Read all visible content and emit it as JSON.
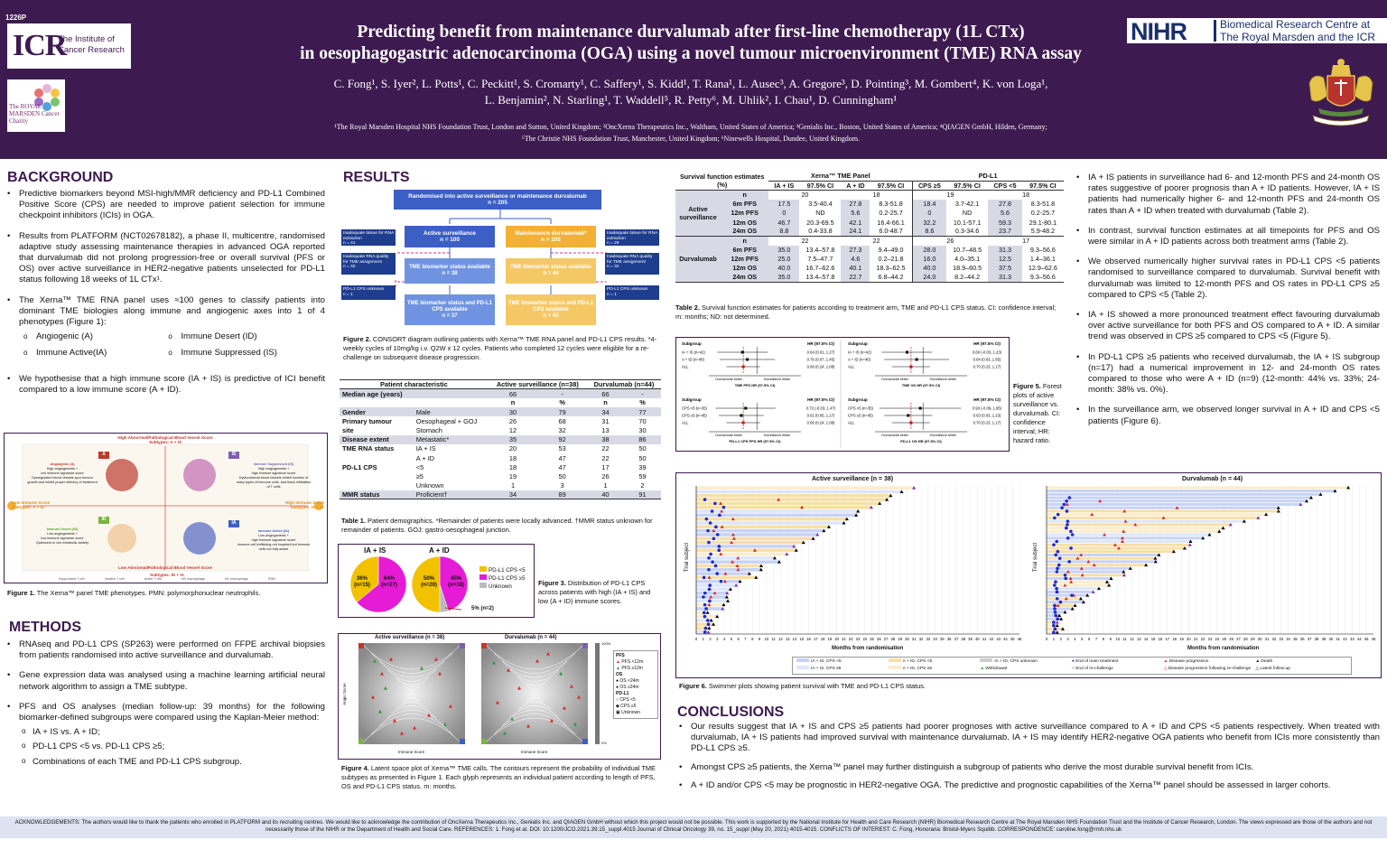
{
  "header": {
    "poster_id": "1226P",
    "icr_letters": "ICR",
    "icr_name": "The Institute of Cancer Research",
    "rm_text": "The ROYAL MARSDEN Cancer Charity",
    "title_line1": "Predicting benefit from maintenance durvalumab after first-line chemotherapy (1L CTx)",
    "title_line2": "in oesophagogastric adenocarcinoma (OGA) using a novel tumour microenvironment (TME) RNA assay",
    "authors_line1": "C. Fong¹, S. Iyer², L. Potts¹, C. Peckitt¹, S. Cromarty¹, C. Saffery¹, S. Kidd¹, T. Rana¹, L. Ausec³, A. Gregore³, D. Pointing³, M. Gombert⁴, K. von Loga¹,",
    "authors_line2": "L. Benjamin², N. Starling¹, T. Waddell⁵, R. Petty⁶, M. Uhlik², I. Chau¹, D. Cunningham¹",
    "affils_line1": "¹The Royal Marsden Hospital NHS Foundation Trust, London and Sutton, United Kingdom; ²OncXerna Therapeutics Inc., Waltham, United States of America; ³Genialis Inc., Boston, United States of America; ⁴QIAGEN GmbH, Hilden, Germany;",
    "affils_line2": "⁵The Christie NHS Foundation Trust, Manchester, United Kingdom; ⁶Ninewells Hospital, Dundee, United Kingdom.",
    "nihr_word": "NIHR",
    "nihr_text_line1": "Biomedical Research Centre at",
    "nihr_text_line2": "The Royal Marsden and the ICR",
    "brand_color": "#3d1a4f"
  },
  "background": {
    "heading": "BACKGROUND",
    "p1": "Predictive biomarkers beyond MSI-high/MMR deficiency and PD-L1 Combined Positive Score (CPS) are needed to improve patient selection for immune checkpoint inhibitors (ICIs) in OGA.",
    "p2": "Results from PLATFORM (NCT02678182), a phase II, multicentre, randomised adaptive study assessing maintenance therapies in advanced OGA reported that durvalumab did not prolong progression-free or overall survival (PFS or OS) over active surveillance in HER2-negative patients unselected for PD-L1 status following 18 weeks of 1L CTx¹.",
    "p3": "The Xerna™ TME RNA panel uses ≈100 genes to classify patients into dominant TME biologies along immune and angiogenic axes into 1 of 4 phenotypes (Figure 1):",
    "phenotypes": [
      "Angiogenic (A)",
      "Immune Desert (ID)",
      "Immune Active(IA)",
      "Immune Suppressed (IS)"
    ],
    "p4": "We hypothesise that a high immune score (IA + IS) is predictive of ICI benefit compared to a low immune score (A + ID)."
  },
  "fig1": {
    "top_label": "High Abnormal/Pathological Blood Vessel Score",
    "top_sub": "Subtypes: A + IS",
    "bottom_label": "Low Abnormal/Pathological Blood Vessel Score",
    "bottom_sub": "Subtypes: ID + IA",
    "left_label": "Low Immune Score",
    "left_sub": "Subtypes: A + ID",
    "right_label": "High Immune Score",
    "right_sub": "Subtypes: IS + IA",
    "q_a": "A",
    "q_is": "IS",
    "q_id": "ID",
    "q_ia": "IA",
    "a_title": "Angiogenic (A)",
    "a_l1": "High angiogenesis +",
    "a_l2": "low immune signature score",
    "a_l3": "Dysregulated blood vessels spur tumour growth and inhibit proper delivery of treatment",
    "is_title": "Immune Suppressed (IS)",
    "is_l1": "High angiogenesis +",
    "is_l2": "high immune signature score",
    "is_l3": "Dysfunctional blood vessels inhibit function of many types of immune cells, and block infiltration of T cells",
    "id_title": "Immune Desert (ID)",
    "id_l1": "Low angiogenesis +",
    "id_l2": "low immune signature score",
    "id_l3": "Quiescent or low metabolic activity",
    "ia_title": "Immune Active (IA)",
    "ia_l1": "Low angiogenesis +",
    "ia_l2": "high immune signature score",
    "ia_l3": "Immune cell trafficking not impaired but immune cells not fully active",
    "legend": [
      "Suppressed T cell",
      "Inactive T cell",
      "Active T cell",
      "M2 macrophage",
      "M1 macrophage",
      "PMN"
    ],
    "caption_b": "Figure 1.",
    "caption": " The Xerna™ panel TME phenotypes. PMN: polymorphonuclear neutrophils."
  },
  "methods": {
    "heading": "METHODS",
    "p1": "RNAseq and PD-L1 CPS (SP263) were performed on FFPE archival biopsies from patients randomised into active surveillance and durvalumab.",
    "p2": "Gene expression data was analysed using a machine learning artificial neural network algorithm to assign a TME subtype.",
    "p3": "PFS and OS analyses (median follow-up: 39 months) for the following biomarker-defined subgroups were compared using the Kaplan-Meier method:",
    "subs": [
      "IA + IS vs. A + ID;",
      "PD-L1 CPS <5 vs. PD-L1 CPS ≥5;",
      "Combinations of each TME and PD-L1 CPS subgroup."
    ]
  },
  "results": {
    "heading": "RESULTS",
    "consort": {
      "top": "Randomised into active surveillance or maintenance durvalumab",
      "top_n": "n = 205",
      "as": "Active surveillance",
      "as_n": "n = 100",
      "dv": "Maintenance durvalumab*",
      "dv_n": "n = 105",
      "as_bio": "TME biomarker status available",
      "as_bio_n": "n = 38",
      "dv_bio": "TME biomarker status available",
      "dv_bio_n": "n = 44",
      "as_both": "TME biomarker status and PD-L1 CPS available",
      "as_both_n": "n = 37",
      "dv_both": "TME biomarker status and PD-L1 CPS available",
      "dv_both_n": "n = 43",
      "l1": "Inadequate tissue for RNA extraction",
      "l1_n": "n = 41",
      "l2": "Inadequate RNA quality for TME assignment",
      "l2_n": "n = 40",
      "l3": "PD-L1 CPS unknown",
      "l3_n": "n = 1",
      "r1": "Inadequate tissue for RNA extraction",
      "r1_n": "n = 29",
      "r2": "Inadequate RNA quality for TME assignment",
      "r2_n": "n = 32",
      "r3": "PD-L1 CPS unknown",
      "r3_n": "n = 1"
    },
    "fig2_caption_b": "Figure 2.",
    "fig2_caption": " CONSORT diagram outlining patients with Xerna™ TME RNA panel and PD-L1 CPS results. *4-weekly cycles of 10mg/kg i.v. Q2W x 12 cycles. Patients who completed 12 cycles were eligible for a re-challenge on subsequent disease progression.",
    "table1": {
      "h_char": "Patient characteristic",
      "h_as": "Active surveillance (n=38)",
      "h_dv": "Durvalumab (n=44)",
      "rows": [
        {
          "group": "Median age (years)",
          "label": "",
          "as_n": "66",
          "as_p": "-",
          "dv_n": "66",
          "dv_p": "-",
          "shade": true
        },
        {
          "group": "",
          "label": "",
          "as_n": "n",
          "as_p": "%",
          "dv_n": "n",
          "dv_p": "%",
          "shade": false
        },
        {
          "group": "Gender",
          "label": "Male",
          "as_n": "30",
          "as_p": "79",
          "dv_n": "34",
          "dv_p": "77",
          "shade": true
        },
        {
          "group": "Primary tumour",
          "label": "Oesophageal + GOJ",
          "as_n": "26",
          "as_p": "68",
          "dv_n": "31",
          "dv_p": "70",
          "shade": false
        },
        {
          "group": "site",
          "label": "Stomach",
          "as_n": "12",
          "as_p": "32",
          "dv_n": "13",
          "dv_p": "30",
          "shade": false
        },
        {
          "group": "Disease extent",
          "label": "Metastatic*",
          "as_n": "35",
          "as_p": "92",
          "dv_n": "38",
          "dv_p": "86",
          "shade": true
        },
        {
          "group": "TME RNA status",
          "label": "IA + IS",
          "as_n": "20",
          "as_p": "53",
          "dv_n": "22",
          "dv_p": "50",
          "shade": false
        },
        {
          "group": "",
          "label": "A + ID",
          "as_n": "18",
          "as_p": "47",
          "dv_n": "22",
          "dv_p": "50",
          "shade": false
        },
        {
          "group": "PD-L1 CPS",
          "label": "<5",
          "as_n": "18",
          "as_p": "47",
          "dv_n": "17",
          "dv_p": "39",
          "shade": false
        },
        {
          "group": "",
          "label": "≥5",
          "as_n": "19",
          "as_p": "50",
          "dv_n": "26",
          "dv_p": "59",
          "shade": false
        },
        {
          "group": "",
          "label": "Unknown",
          "as_n": "1",
          "as_p": "3",
          "dv_n": "1",
          "dv_p": "2",
          "shade": false
        },
        {
          "group": "MMR status",
          "label": "Proficient†",
          "as_n": "34",
          "as_p": "89",
          "dv_n": "40",
          "dv_p": "91",
          "shade": true
        }
      ]
    },
    "table1_caption_b": "Table 1.",
    "table1_caption": " Patient demographics. *Remainder of patients were locally advanced. †MMR status unknown for remainder of patients. GOJ: gastro-oesophageal junction.",
    "fig3": {
      "t1": "IA + IS",
      "t2": "A + ID",
      "p1a": "36%",
      "p1a_n": "(n=15)",
      "p1b": "64%",
      "p1b_n": "(n=27)",
      "p2a": "50%",
      "p2a_n": "(n=20)",
      "p2b": "45%",
      "p2b_n": "(n=18)",
      "p2c": "5% (n=2)",
      "leg1": "PD-L1 CPS <5",
      "leg2": "PD-L1 CPS ≥5",
      "leg3": "Unknown",
      "caption_b": "Figure 3.",
      "caption": " Distribution of PD-L1 CPS across patients with high (IA + IS) and low (A + ID) immune scores."
    },
    "fig4": {
      "t1": "Active surveillance (n = 38)",
      "t2": "Durvalumab (n = 44)",
      "xlabel": "Immune Score",
      "ylabel": "Angio Score",
      "leg_pfs": "PFS",
      "leg_pfs1": "PFS <12m",
      "leg_pfs2": "PFS ≥12m",
      "leg_os": "OS",
      "leg_os1": "OS <24m",
      "leg_os2": "OS ≥24m",
      "leg_pd": "PD-L1",
      "leg_pd1": "CPS <5",
      "leg_pd2": "CPS ≥5",
      "leg_pd3": "Unknown",
      "cb_top": "100%",
      "cb_bot": "0%",
      "caption_b": "Figure 4.",
      "caption": " Latent space plot of Xerna™ TME calls. The contours represent the probability of individual TME subtypes as presented in Figure 1. Each glyph represents an individual patient according to length of PFS, OS and PD-L1 CPS status. m: months."
    }
  },
  "table2": {
    "h_surv": "Survival function estimates (%)",
    "h_xerna": "Xerna™ TME Panel",
    "h_pdl1": "PD-L1",
    "sub": [
      "IA + IS",
      "97.5% CI",
      "A + ID",
      "97.5% CI",
      "CPS ≥5",
      "97.5% CI",
      "CPS <5",
      "97.5% CI"
    ],
    "arm1": "Active surveillance",
    "arm2": "Durvalumab",
    "arm1_rows": [
      {
        "label": "n",
        "c": [
          "20",
          "",
          "18",
          "",
          "19",
          "",
          "18",
          ""
        ]
      },
      {
        "label": "6m PFS",
        "c": [
          "17.5",
          "3.5-40.4",
          "27.8",
          "8.3-51.8",
          "18.4",
          "3.7-42.1",
          "27.8",
          "8.3-51.8"
        ]
      },
      {
        "label": "12m PFS",
        "c": [
          "0",
          "ND",
          "5.6",
          "0.2-25.7",
          "0",
          "ND",
          "5.6",
          "0.2-25.7"
        ]
      },
      {
        "label": "12m OS",
        "c": [
          "46.7",
          "20.3-69.5",
          "42.1",
          "16.4-66.1",
          "32.2",
          "10.1-57.1",
          "59.3",
          "29.1-80.1"
        ]
      },
      {
        "label": "24m OS",
        "c": [
          "8.8",
          "0.4-33.8",
          "24.1",
          "6.0-48.7",
          "8.6",
          "0.3-34.6",
          "23.7",
          "5.9-48.2"
        ]
      }
    ],
    "arm2_rows": [
      {
        "label": "n",
        "c": [
          "22",
          "",
          "22",
          "",
          "26",
          "",
          "17",
          ""
        ]
      },
      {
        "label": "6m PFS",
        "c": [
          "35.0",
          "13.4–57.8",
          "27.3",
          "9.4–49.0",
          "28.0",
          "10.7–48.5",
          "31.3",
          "9.3–56.6"
        ]
      },
      {
        "label": "12m PFS",
        "c": [
          "25.0",
          "7.5–47.7",
          "4.6",
          "0.2–21.8",
          "16.0",
          "4.0–35.1",
          "12.5",
          "1.4–36.1"
        ]
      },
      {
        "label": "12m OS",
        "c": [
          "40.0",
          "16.7–62.6",
          "40.1",
          "18.3–62.5",
          "40.0",
          "18.9–60.5",
          "37.5",
          "12.9–62.6"
        ]
      },
      {
        "label": "24m OS",
        "c": [
          "35.0",
          "13.4–57.8",
          "22.7",
          "6.8–44.2",
          "24.0",
          "8.2–44.2",
          "31.3",
          "9.3–56.6"
        ]
      }
    ],
    "caption_b": "Table 2.",
    "caption": " Survival function estimates for patients according to treatment arm, TME and PD-L1 CPS status. CI: confidence interval; m: months; ND: not determined."
  },
  "fig5": {
    "subgroup": "Subgroup",
    "hr": "HR (97.5% CI)",
    "p1_rows": [
      "IA + IS (n=42)",
      "A + ID (n=40)",
      "ALL"
    ],
    "p1_hr": [
      "0.64 (0.01, 1.27)",
      "0.76 (0.07, 1.45)",
      "0.66 (0.24, 1.08)"
    ],
    "p1_x": "TME PFS HR (97.5% CI)",
    "p2_rows": [
      "IA + IS (n=42)",
      "A + ID (n=40)",
      "ALL"
    ],
    "p2_hr": [
      "0.60 (-0.03, 1.23)",
      "0.84 (0.03, 1.65)",
      "0.70 (0.23, 1.17)"
    ],
    "p2_x": "TME OS HR (97.5% CI)",
    "p3_rows": [
      "CPS <5 (n=35)",
      "CPS ≥5 (n=45)",
      "ALL"
    ],
    "p3_hr": [
      "0.72 (-0.03, 1.47)",
      "0.61 (0.05, 1.17)",
      "0.66 (0.24, 1.08)"
    ],
    "p3_x": "PD-L1 CPS PFS HR (97.5% CI)",
    "p4_rows": [
      "CPS <5 (n=35)",
      "CPS ≥5 (n=45)",
      "ALL"
    ],
    "p4_hr": [
      "0.93 (-0.09, 1.95)",
      "0.63 (0.03, 1.23)",
      "0.70 (0.23, 1.17)"
    ],
    "p4_x": "PD-L1 OS HR (97.5% CI)",
    "durv_better": "Durvalumab better",
    "surv_better": "Surveillance better",
    "caption_b": "Figure 5.",
    "caption": " Forest plots of active surveillance vs. durvalumab. CI: confidence interval; HR: hazard ratio."
  },
  "right_bullets": [
    "IA + IS patients in surveillance had 6- and 12-month PFS and 24-month OS rates suggestive of poorer prognosis than A + ID patients. However, IA + IS patients had numerically higher 6- and 12-month PFS and 24-month OS rates than A + ID when treated with durvalumab (Table 2).",
    "In contrast, survival function estimates at all timepoints for PFS and OS were similar in A + ID patients across both treatment arms (Table 2).",
    "We observed numerically higher survival rates in PD-L1 CPS <5 patients randomised to surveillance compared to durvalumab. Survival benefit with durvalumab was limited to 12-month PFS and OS rates in PD-L1 CPS ≥5 compared to CPS <5 (Table 2).",
    "IA + IS showed a more pronounced treatment effect favouring durvalumab over active surveillance for both PFS and OS compared to A + ID. A similar trend was observed in CPS ≥5 compared to CPS <5 (Figure 5).",
    "In PD-L1 CPS ≥5 patients who received durvalumab, the IA + IS subgroup (n=17) had a numerical improvement in 12- and 24-month OS rates compared to those who were A + ID (n=9) (12-month: 44% vs. 33%; 24-month: 38% vs. 0%).",
    "In the surveillance arm, we observed longer survival in A + ID and CPS <5 patients (Figure 6)."
  ],
  "fig6": {
    "t1": "Active surveillance (n = 38)",
    "t2": "Durvalumab (n = 44)",
    "ylabel": "Trial subject",
    "xlabel": "Months from randomisation",
    "ticks": [
      "0",
      "1",
      "2",
      "3",
      "4",
      "5",
      "6",
      "7",
      "8",
      "9",
      "10",
      "11",
      "12",
      "13",
      "14",
      "15",
      "16",
      "17",
      "18",
      "19",
      "20",
      "21",
      "22",
      "23",
      "24",
      "25",
      "26",
      "27",
      "28",
      "29",
      "30",
      "31",
      "32",
      "33",
      "34",
      "35",
      "36",
      "37",
      "38",
      "39",
      "40",
      "41",
      "42",
      "43",
      "44",
      "45",
      "46"
    ],
    "legend": [
      "IA + IS, CPS <5",
      "A + ID, CPS <5",
      "IA + ID, CPS unknown",
      "End of main treatment",
      "Disease progression",
      "Death",
      "IA + IS, CPS ≥5",
      "A + ID, CPS ≥5",
      "Withdrawal",
      "End of re-challenge",
      "Disease progression following re-challenge",
      "Latest follow-up"
    ],
    "caption_b": "Figure 6.",
    "caption": " Swimmer plots showing patient survival with TME and PD-L1 CPS status."
  },
  "conclusions": {
    "heading": "CONCLUSIONS",
    "items": [
      "Our results suggest that IA + IS and CPS ≥5 patients had poorer prognoses with active surveillance compared to A + ID and CPS <5 patients respectively. When treated with durvalumab, IA + IS patients had improved survival with maintenance durvalumab. IA + IS may identify HER2-negative OGA patients who benefit from ICIs more consistently than PD-L1 CPS ≥5.",
      "Amongst CPS ≥5 patients, the Xerna™ panel may further distinguish a subgroup of patients who derive the most durable survival benefit from ICIs.",
      "A + ID and/or CPS <5 may be prognostic in HER2-negative OGA. The predictive and prognostic capabilities of the Xerna™ panel should be assessed in larger cohorts."
    ]
  },
  "ack": {
    "text": "ACKNOWLEDGEMENTS: The authors would like to thank the patients who enrolled in PLATFORM and its recruiting centres. We would like to acknowledge the contribution of OncXerna Therapeutics Inc., Genialis Inc. and QIAGEN GmbH without which this project would not be possible. This work is supported by the National Institute for Health and Care Research (NIHR) Biomedical Research Centre at The Royal Marsden NHS Foundation Trust and the Institute of Cancer Research, London. The views expressed are those of the authors and not necessarily those of the NIHR or the Department of Health and Social Care. REFERENCES: 1. Fong et al. DOI: 10.1200/JCO.2021.39.15_suppl.4015 Journal of Clinical Oncology 39, no. 15_suppl (May 20, 2021) 4015-4015. CONFLICTS OF INTEREST: C. Fong, Honoraria: Bristol-Myers Squibb. CORRESPONDENCE: caroline.fong@rmh.nhs.uk"
  }
}
